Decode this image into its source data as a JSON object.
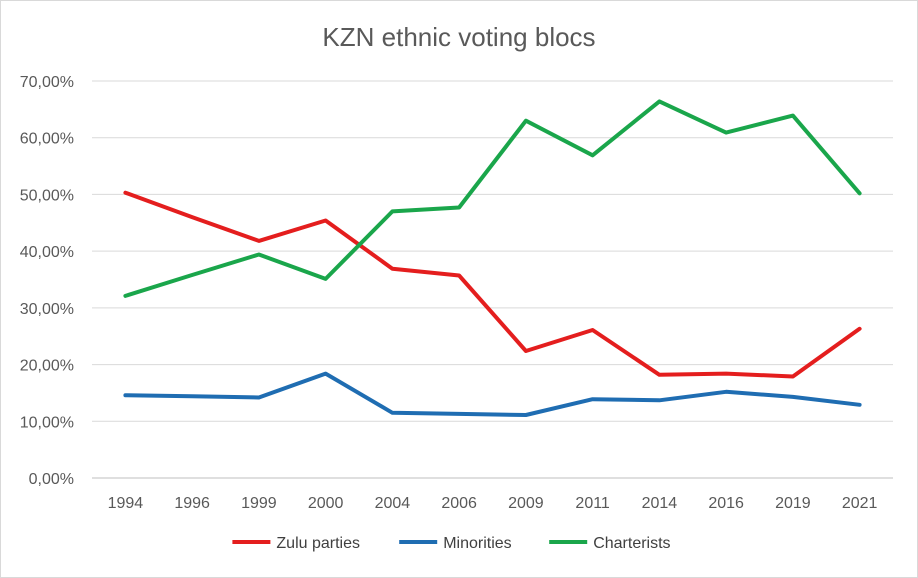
{
  "chart_data": {
    "type": "line",
    "title": "KZN ethnic voting blocs",
    "xlabel": "",
    "ylabel": "",
    "categories": [
      "1994",
      "1996",
      "1999",
      "2000",
      "2004",
      "2006",
      "2009",
      "2011",
      "2014",
      "2016",
      "2019",
      "2021"
    ],
    "y_ticks": [
      "0,00%",
      "10,00%",
      "20,00%",
      "30,00%",
      "40,00%",
      "50,00%",
      "60,00%",
      "70,00%"
    ],
    "ylim": [
      0,
      70
    ],
    "grid": true,
    "legend_position": "bottom",
    "series": [
      {
        "name": "Zulu parties",
        "color": "#e41e1e",
        "values": [
          50.3,
          46.0,
          41.8,
          45.4,
          36.9,
          35.7,
          22.4,
          26.1,
          18.2,
          18.4,
          17.9,
          26.3
        ]
      },
      {
        "name": "Minorities",
        "color": "#1f6db2",
        "values": [
          14.6,
          14.4,
          14.2,
          18.4,
          11.5,
          11.3,
          11.1,
          13.9,
          13.7,
          15.2,
          14.3,
          12.9
        ]
      },
      {
        "name": "Charterists",
        "color": "#1aa64b",
        "values": [
          32.1,
          35.8,
          39.4,
          35.1,
          47.0,
          47.7,
          63.0,
          56.9,
          66.4,
          60.9,
          63.9,
          50.2
        ]
      }
    ]
  }
}
